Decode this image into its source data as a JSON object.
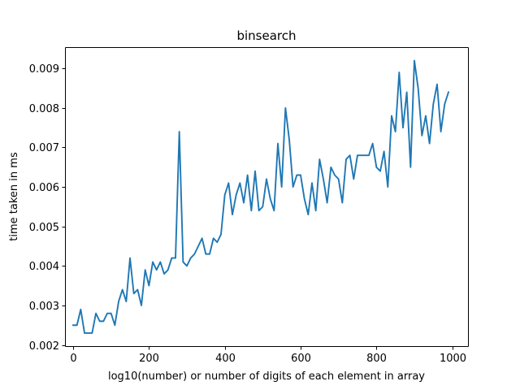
{
  "chart_data": {
    "type": "line",
    "title": "binsearch",
    "xlabel": "log10(number) or number of digits of each element in array",
    "ylabel": "time taken in ms",
    "xlim": [
      -21.5,
      1041.5
    ],
    "ylim": [
      0.00197,
      0.00954
    ],
    "xticks": [
      0,
      200,
      400,
      600,
      800,
      1000
    ],
    "xtick_labels": [
      "0",
      "200",
      "400",
      "600",
      "800",
      "1000"
    ],
    "yticks": [
      0.002,
      0.003,
      0.004,
      0.005,
      0.006,
      0.007,
      0.008,
      0.009
    ],
    "ytick_labels": [
      "0.002",
      "0.003",
      "0.004",
      "0.005",
      "0.006",
      "0.007",
      "0.008",
      "0.009"
    ],
    "grid": false,
    "legend": "none",
    "colors": {
      "series": "#1f77b4"
    },
    "series": [
      {
        "x": [
          0,
          10,
          20,
          30,
          40,
          50,
          60,
          70,
          80,
          90,
          100,
          110,
          120,
          130,
          140,
          150,
          160,
          170,
          180,
          190,
          200,
          210,
          220,
          230,
          240,
          250,
          260,
          270,
          280,
          290,
          300,
          310,
          320,
          330,
          340,
          350,
          360,
          370,
          380,
          390,
          400,
          410,
          420,
          430,
          440,
          450,
          460,
          470,
          480,
          490,
          500,
          510,
          520,
          530,
          540,
          550,
          560,
          570,
          580,
          590,
          600,
          610,
          620,
          630,
          640,
          650,
          660,
          670,
          680,
          690,
          700,
          710,
          720,
          730,
          740,
          750,
          760,
          770,
          780,
          790,
          800,
          810,
          820,
          830,
          840,
          850,
          860,
          870,
          880,
          890,
          900,
          910,
          920,
          930,
          940,
          950,
          960,
          970,
          980,
          990
        ],
        "values": [
          0.0025,
          0.0025,
          0.0029,
          0.0023,
          0.0023,
          0.0023,
          0.0028,
          0.0026,
          0.0026,
          0.0028,
          0.0028,
          0.0025,
          0.0031,
          0.0034,
          0.0031,
          0.0042,
          0.0033,
          0.0034,
          0.003,
          0.0039,
          0.0035,
          0.0041,
          0.0039,
          0.0041,
          0.0038,
          0.0039,
          0.0042,
          0.0042,
          0.0074,
          0.0041,
          0.004,
          0.0042,
          0.0043,
          0.0045,
          0.0047,
          0.0043,
          0.0043,
          0.0047,
          0.0046,
          0.0048,
          0.0058,
          0.0061,
          0.0053,
          0.0058,
          0.0061,
          0.0056,
          0.0063,
          0.0054,
          0.0064,
          0.0054,
          0.0055,
          0.0062,
          0.0057,
          0.0054,
          0.0071,
          0.006,
          0.008,
          0.0072,
          0.006,
          0.0063,
          0.0063,
          0.0057,
          0.0053,
          0.0061,
          0.0054,
          0.0067,
          0.0062,
          0.0056,
          0.0065,
          0.0063,
          0.0062,
          0.0056,
          0.0067,
          0.0068,
          0.0062,
          0.0068,
          0.0068,
          0.0068,
          0.0068,
          0.0071,
          0.0065,
          0.0064,
          0.0069,
          0.006,
          0.0078,
          0.0074,
          0.0089,
          0.0075,
          0.0084,
          0.0065,
          0.0092,
          0.0085,
          0.0073,
          0.0078,
          0.0071,
          0.0081,
          0.0086,
          0.0074,
          0.0081,
          0.0084
        ]
      }
    ]
  }
}
